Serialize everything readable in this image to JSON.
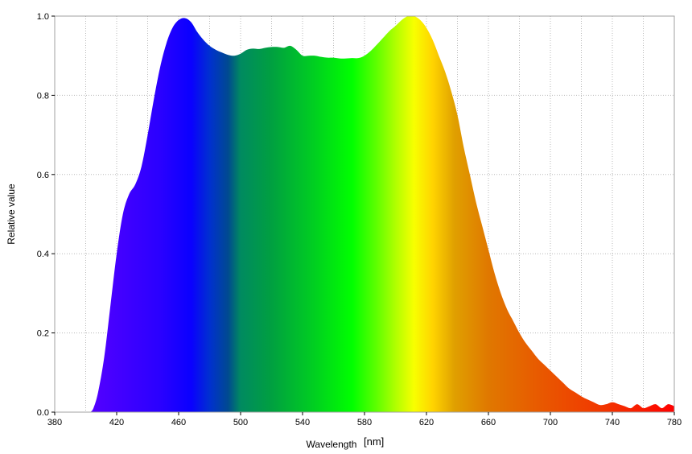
{
  "chart_data": {
    "type": "area",
    "title": "",
    "xlabel": "Wavelength",
    "xunit": "[nm]",
    "ylabel": "Relative value",
    "xlim": [
      380,
      780
    ],
    "ylim": [
      0.0,
      1.0
    ],
    "x_ticks": [
      380,
      420,
      460,
      500,
      540,
      580,
      620,
      660,
      700,
      740,
      780
    ],
    "x_tick_labels": [
      "380",
      "420",
      "460",
      "500",
      "540",
      "580",
      "620",
      "660",
      "700",
      "740",
      "780"
    ],
    "y_ticks": [
      0.0,
      0.2,
      0.4,
      0.6,
      0.8,
      1.0
    ],
    "y_tick_labels": [
      "0.0",
      "0.2",
      "0.4",
      "0.6",
      "0.8",
      "1.0"
    ],
    "grid": true,
    "legend": "none",
    "fill": "visible-spectrum gradient",
    "series": [
      {
        "x": [
          403,
          405,
          408,
          412,
          416,
          420,
          424,
          428,
          432,
          436,
          440,
          444,
          448,
          452,
          456,
          460,
          464,
          468,
          472,
          476,
          480,
          484,
          488,
          492,
          496,
          500,
          504,
          508,
          512,
          516,
          520,
          524,
          528,
          532,
          536,
          540,
          544,
          548,
          552,
          556,
          560,
          564,
          568,
          572,
          576,
          580,
          584,
          588,
          592,
          596,
          600,
          604,
          608,
          612,
          616,
          620,
          624,
          628,
          632,
          636,
          640,
          644,
          648,
          652,
          656,
          660,
          664,
          668,
          672,
          676,
          680,
          684,
          688,
          692,
          696,
          700,
          704,
          708,
          712,
          716,
          720,
          724,
          728,
          732,
          736,
          740,
          744,
          748,
          752,
          756,
          760,
          764,
          768,
          772,
          776,
          780
        ],
        "y": [
          0.0,
          0.01,
          0.05,
          0.14,
          0.27,
          0.4,
          0.5,
          0.55,
          0.575,
          0.62,
          0.7,
          0.79,
          0.87,
          0.93,
          0.97,
          0.99,
          0.995,
          0.985,
          0.96,
          0.94,
          0.925,
          0.915,
          0.908,
          0.902,
          0.9,
          0.905,
          0.915,
          0.918,
          0.917,
          0.92,
          0.922,
          0.922,
          0.92,
          0.925,
          0.915,
          0.9,
          0.9,
          0.9,
          0.897,
          0.895,
          0.895,
          0.893,
          0.893,
          0.894,
          0.894,
          0.9,
          0.912,
          0.928,
          0.945,
          0.962,
          0.975,
          0.99,
          1.0,
          1.0,
          0.99,
          0.97,
          0.94,
          0.9,
          0.86,
          0.81,
          0.75,
          0.67,
          0.6,
          0.53,
          0.47,
          0.41,
          0.35,
          0.3,
          0.26,
          0.23,
          0.2,
          0.175,
          0.155,
          0.135,
          0.12,
          0.105,
          0.09,
          0.075,
          0.06,
          0.05,
          0.04,
          0.032,
          0.025,
          0.018,
          0.02,
          0.025,
          0.02,
          0.015,
          0.01,
          0.02,
          0.01,
          0.015,
          0.02,
          0.01,
          0.02,
          0.015
        ]
      }
    ]
  }
}
